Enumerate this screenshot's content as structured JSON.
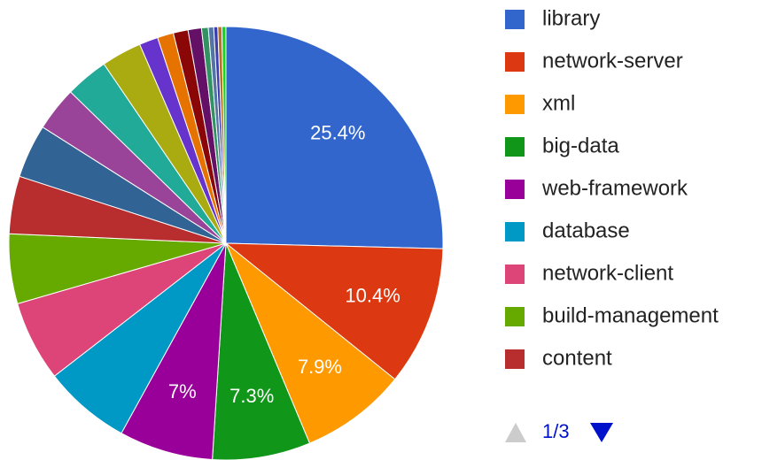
{
  "chart_data": {
    "type": "pie",
    "categories": [
      "library",
      "network-server",
      "xml",
      "big-data",
      "web-framework",
      "database",
      "network-client",
      "build-management",
      "content",
      null,
      null,
      null,
      null,
      null,
      null,
      null,
      null,
      null,
      null,
      null,
      null,
      null
    ],
    "values": [
      25.4,
      10.4,
      7.9,
      7.3,
      7,
      6.5,
      6,
      5.2,
      4.3,
      4,
      3.3,
      3.2,
      3,
      1.4,
      1.2,
      1.1,
      1,
      0.5,
      0.4,
      0.3,
      0.3,
      0.3
    ],
    "value_labels": [
      "25.4%",
      "10.4%",
      "7.9%",
      "7.3%",
      "7%",
      null,
      null,
      null,
      null,
      null,
      null,
      null,
      null,
      null,
      null,
      null,
      null,
      null,
      null,
      null,
      null,
      null
    ],
    "colors": [
      "#3366cc",
      "#dc3912",
      "#ff9900",
      "#109618",
      "#990099",
      "#0099c6",
      "#dd4477",
      "#66aa00",
      "#b82e2e",
      "#316395",
      "#994499",
      "#22aa99",
      "#aaaa11",
      "#6633cc",
      "#e67300",
      "#8b0707",
      "#651067",
      "#329262",
      "#5574a6",
      "#3b3eac",
      "#b77322",
      "#16d620"
    ],
    "legend_page": "1/3"
  }
}
